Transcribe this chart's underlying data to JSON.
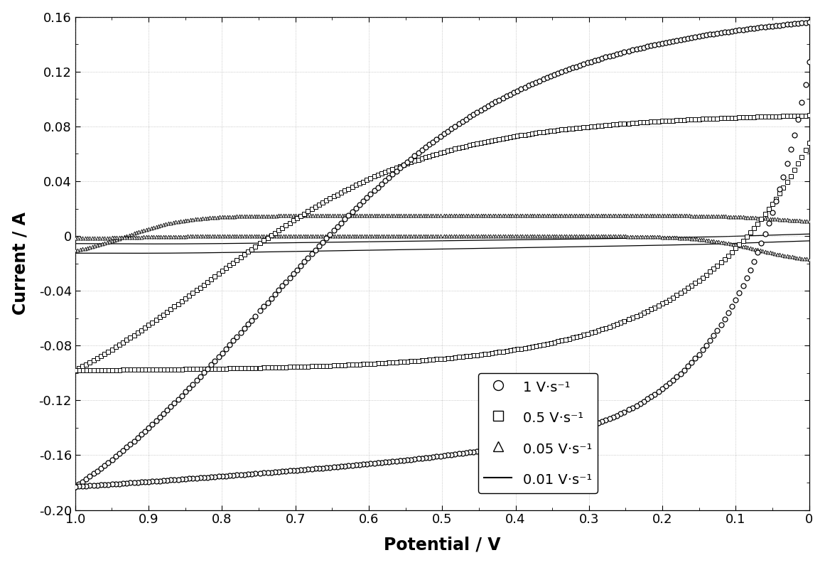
{
  "xlabel": "Potential / V",
  "ylabel": "Current / A",
  "xlim": [
    1.0,
    0.0
  ],
  "ylim": [
    -0.2,
    0.16
  ],
  "yticks": [
    -0.2,
    -0.16,
    -0.12,
    -0.08,
    -0.04,
    0.0,
    0.04,
    0.08,
    0.12,
    0.16
  ],
  "xticks": [
    1.0,
    0.9,
    0.8,
    0.7,
    0.6,
    0.5,
    0.4,
    0.3,
    0.2,
    0.1,
    0.0
  ],
  "background_color": "#ffffff",
  "legend": [
    {
      "label": "1 V·s⁻¹",
      "marker": "o"
    },
    {
      "label": "0.5 V·s⁻¹",
      "marker": "s"
    },
    {
      "label": "0.05 V·s⁻¹",
      "marker": "^"
    },
    {
      "label": "0.01 V·s⁻¹",
      "marker": "none"
    }
  ]
}
